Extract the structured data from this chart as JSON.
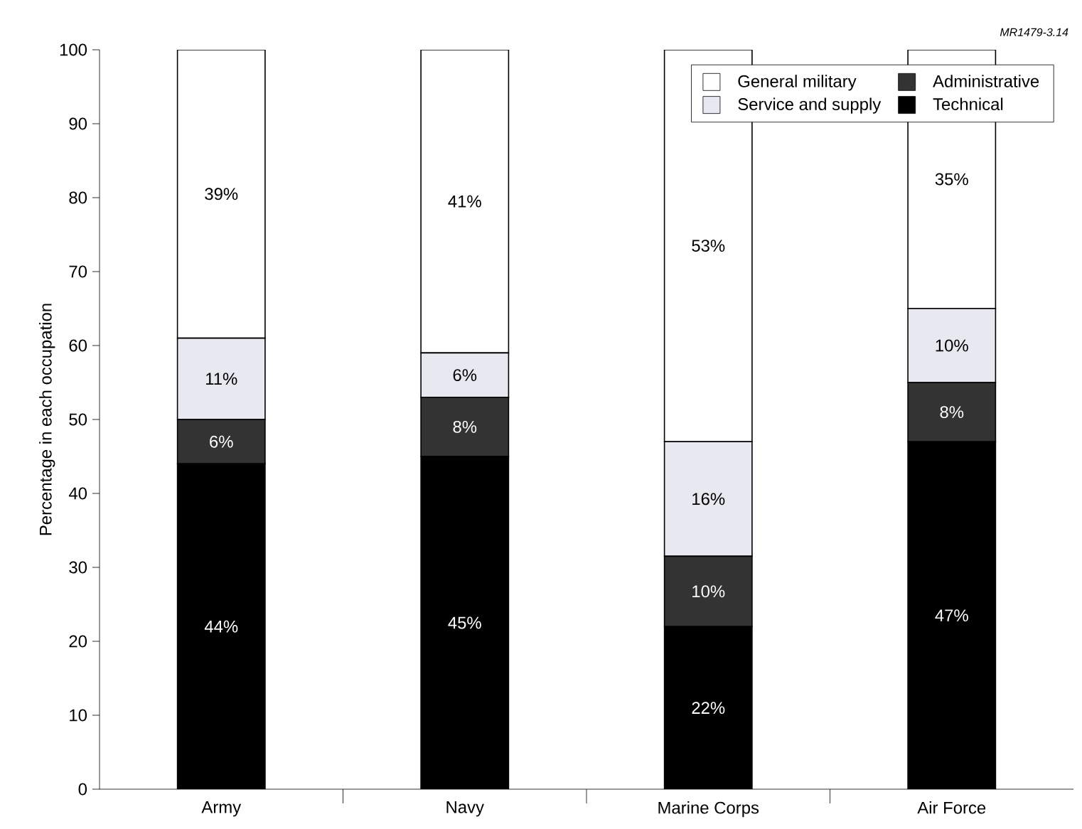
{
  "chart_data": {
    "type": "bar",
    "stacked": true,
    "ylabel": "Percentage in each occupation",
    "annotations": [
      "MR1479-3.14"
    ],
    "categories": [
      "Army",
      "Navy",
      "Marine Corps",
      "Air Force"
    ],
    "series": [
      {
        "name": "Technical",
        "color": "#000000",
        "values": [
          44,
          45,
          22,
          47
        ],
        "value_labels": [
          "44%",
          "45%",
          "22%",
          "47%"
        ]
      },
      {
        "name": "Administrative",
        "color": "#333333",
        "values": [
          6,
          8,
          9.5,
          8
        ],
        "value_labels": [
          "6%",
          "8%",
          "10%",
          "8%"
        ]
      },
      {
        "name": "Service and supply",
        "color": "#e8e8f0",
        "values": [
          11,
          6,
          15.5,
          10
        ],
        "value_labels": [
          "11%",
          "6%",
          "16%",
          "10%"
        ]
      },
      {
        "name": "General military",
        "color": "#ffffff",
        "values": [
          39,
          41,
          53,
          35
        ],
        "value_labels": [
          "39%",
          "41%",
          "53%",
          "35%"
        ]
      }
    ],
    "ylim": [
      0,
      100
    ],
    "yticks": [
      0,
      10,
      20,
      30,
      40,
      50,
      60,
      70,
      80,
      90,
      100
    ],
    "grid": false,
    "legend": "top right"
  }
}
